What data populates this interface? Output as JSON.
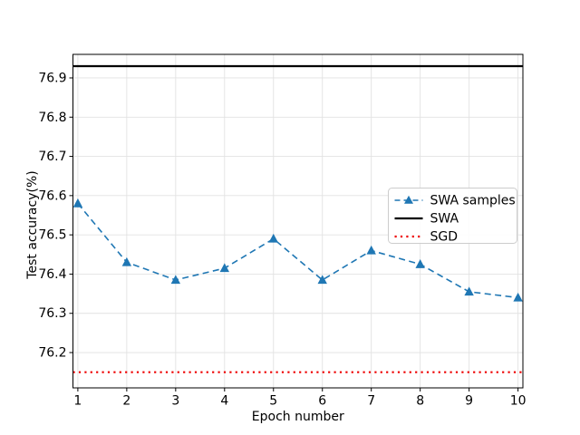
{
  "figure": {
    "background": "#ffffff"
  },
  "chart_data": {
    "type": "line",
    "title": "",
    "xlabel": "Epoch number",
    "ylabel": "Test accuracy(%)",
    "x": [
      1,
      2,
      3,
      4,
      5,
      6,
      7,
      8,
      9,
      10
    ],
    "series": [
      {
        "name": "SWA samples",
        "style": "dashed-line-triangle-markers",
        "color": "#1f77b4",
        "values": [
          76.58,
          76.43,
          76.385,
          76.415,
          76.49,
          76.385,
          76.46,
          76.425,
          76.355,
          76.34
        ]
      },
      {
        "name": "SWA",
        "style": "solid-hline",
        "color": "#000000",
        "value": 76.93
      },
      {
        "name": "SGD",
        "style": "dotted-hline",
        "color": "#ee0000",
        "value": 76.15
      }
    ],
    "xlim": [
      0.9,
      10.1
    ],
    "ylim": [
      76.11,
      76.96
    ],
    "xticks": [
      "1",
      "2",
      "3",
      "4",
      "5",
      "6",
      "7",
      "8",
      "9",
      "10"
    ],
    "yticks": [
      "76.2",
      "76.3",
      "76.4",
      "76.5",
      "76.6",
      "76.7",
      "76.8",
      "76.9"
    ],
    "grid": true,
    "grid_color": "#e2e2e2",
    "legend_position": "center-right"
  }
}
